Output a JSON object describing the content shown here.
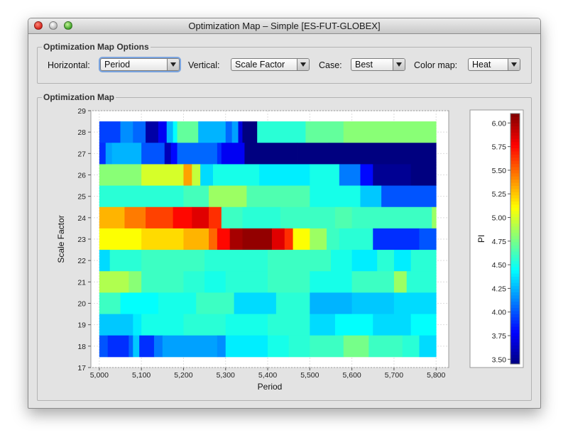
{
  "window": {
    "title": "Optimization Map –  Simple [ES-FUT-GLOBEX]"
  },
  "options": {
    "panel_title": "Optimization Map Options",
    "horizontal_label": "Horizontal:",
    "horizontal_value": "Period",
    "vertical_label": "Vertical:",
    "vertical_value": "Scale Factor",
    "case_label": "Case:",
    "case_value": "Best",
    "colormap_label": "Color map:",
    "colormap_value": "Heat"
  },
  "map_panel": {
    "title": "Optimization Map"
  },
  "chart_data": {
    "type": "heatmap",
    "xlabel": "Period",
    "ylabel": "Scale Factor",
    "x_ticks": [
      "5,000",
      "5,100",
      "5,200",
      "5,300",
      "5,400",
      "5,500",
      "5,600",
      "5,700",
      "5,800"
    ],
    "y_ticks": [
      "17",
      "18",
      "19",
      "20",
      "21",
      "22",
      "23",
      "24",
      "25",
      "26",
      "27",
      "28",
      "29"
    ],
    "xlim": [
      4980,
      5830
    ],
    "ylim": [
      17,
      29
    ],
    "x_range": [
      5000,
      5800
    ],
    "y_range": [
      17.5,
      28.5
    ],
    "grid": true,
    "colorbar": {
      "label": "PI",
      "min": 3.45,
      "max": 6.1,
      "ticks": [
        "6.00",
        "5.75",
        "5.50",
        "5.25",
        "5.00",
        "4.75",
        "4.50",
        "4.25",
        "4.00",
        "3.75",
        "3.50"
      ]
    },
    "rows": [
      {
        "y": 28,
        "segments": [
          [
            5000,
            5050,
            3.95
          ],
          [
            5050,
            5080,
            4.15
          ],
          [
            5080,
            5100,
            4.05
          ],
          [
            5100,
            5110,
            4.05
          ],
          [
            5110,
            5140,
            3.55
          ],
          [
            5140,
            5160,
            3.75
          ],
          [
            5160,
            5175,
            4.25
          ],
          [
            5175,
            5185,
            4.45
          ],
          [
            5185,
            5235,
            4.7
          ],
          [
            5235,
            5300,
            4.25
          ],
          [
            5300,
            5315,
            4.05
          ],
          [
            5315,
            5330,
            4.2
          ],
          [
            5330,
            5340,
            3.7
          ],
          [
            5340,
            5375,
            3.45
          ],
          [
            5375,
            5400,
            4.55
          ],
          [
            5400,
            5490,
            4.55
          ],
          [
            5490,
            5580,
            4.7
          ],
          [
            5580,
            5800,
            4.8
          ]
        ]
      },
      {
        "y": 27,
        "segments": [
          [
            5000,
            5015,
            3.9
          ],
          [
            5015,
            5030,
            4.2
          ],
          [
            5030,
            5100,
            4.25
          ],
          [
            5100,
            5155,
            4.0
          ],
          [
            5155,
            5170,
            3.6
          ],
          [
            5170,
            5185,
            3.8
          ],
          [
            5185,
            5280,
            4.05
          ],
          [
            5280,
            5290,
            3.9
          ],
          [
            5290,
            5345,
            3.75
          ],
          [
            5345,
            5470,
            3.45
          ],
          [
            5470,
            5545,
            3.45
          ],
          [
            5545,
            5800,
            3.42
          ]
        ]
      },
      {
        "y": 26,
        "segments": [
          [
            5000,
            5100,
            4.8
          ],
          [
            5100,
            5200,
            5.0
          ],
          [
            5200,
            5220,
            5.35
          ],
          [
            5220,
            5240,
            4.95
          ],
          [
            5240,
            5270,
            4.35
          ],
          [
            5270,
            5380,
            4.5
          ],
          [
            5380,
            5500,
            4.4
          ],
          [
            5500,
            5570,
            4.5
          ],
          [
            5570,
            5620,
            4.1
          ],
          [
            5620,
            5650,
            3.8
          ],
          [
            5650,
            5740,
            3.5
          ],
          [
            5740,
            5800,
            3.45
          ]
        ]
      },
      {
        "y": 25,
        "segments": [
          [
            5000,
            5200,
            4.55
          ],
          [
            5200,
            5260,
            4.62
          ],
          [
            5260,
            5350,
            4.85
          ],
          [
            5350,
            5500,
            4.65
          ],
          [
            5500,
            5620,
            4.5
          ],
          [
            5620,
            5670,
            4.3
          ],
          [
            5670,
            5800,
            4.0
          ]
        ]
      },
      {
        "y": 24,
        "segments": [
          [
            5000,
            5060,
            5.3
          ],
          [
            5060,
            5110,
            5.45
          ],
          [
            5110,
            5175,
            5.6
          ],
          [
            5175,
            5220,
            5.75
          ],
          [
            5220,
            5260,
            5.85
          ],
          [
            5260,
            5290,
            5.65
          ],
          [
            5290,
            5340,
            4.6
          ],
          [
            5340,
            5430,
            4.55
          ],
          [
            5430,
            5560,
            4.6
          ],
          [
            5560,
            5600,
            4.65
          ],
          [
            5600,
            5790,
            4.6
          ],
          [
            5790,
            5800,
            4.85
          ]
        ]
      },
      {
        "y": 23,
        "segments": [
          [
            5000,
            5100,
            5.1
          ],
          [
            5100,
            5200,
            5.2
          ],
          [
            5200,
            5260,
            5.3
          ],
          [
            5260,
            5280,
            5.5
          ],
          [
            5280,
            5310,
            5.75
          ],
          [
            5310,
            5340,
            6.0
          ],
          [
            5340,
            5410,
            6.05
          ],
          [
            5410,
            5440,
            5.85
          ],
          [
            5440,
            5460,
            5.65
          ],
          [
            5460,
            5500,
            5.1
          ],
          [
            5500,
            5540,
            4.85
          ],
          [
            5540,
            5570,
            4.6
          ],
          [
            5570,
            5650,
            4.55
          ],
          [
            5650,
            5760,
            3.9
          ],
          [
            5760,
            5800,
            4.0
          ]
        ]
      },
      {
        "y": 22,
        "segments": [
          [
            5000,
            5025,
            4.35
          ],
          [
            5025,
            5100,
            4.55
          ],
          [
            5100,
            5250,
            4.6
          ],
          [
            5250,
            5400,
            4.55
          ],
          [
            5400,
            5550,
            4.6
          ],
          [
            5550,
            5600,
            4.5
          ],
          [
            5600,
            5660,
            4.4
          ],
          [
            5660,
            5700,
            4.55
          ],
          [
            5700,
            5740,
            4.4
          ],
          [
            5740,
            5800,
            4.55
          ]
        ]
      },
      {
        "y": 21,
        "segments": [
          [
            5000,
            5070,
            4.9
          ],
          [
            5070,
            5100,
            4.8
          ],
          [
            5100,
            5200,
            4.6
          ],
          [
            5200,
            5250,
            4.55
          ],
          [
            5250,
            5300,
            4.5
          ],
          [
            5300,
            5400,
            4.55
          ],
          [
            5400,
            5500,
            4.6
          ],
          [
            5500,
            5600,
            4.5
          ],
          [
            5600,
            5700,
            4.6
          ],
          [
            5700,
            5730,
            4.85
          ],
          [
            5730,
            5800,
            4.55
          ]
        ]
      },
      {
        "y": 20,
        "segments": [
          [
            5000,
            5050,
            4.6
          ],
          [
            5050,
            5140,
            4.45
          ],
          [
            5140,
            5230,
            4.5
          ],
          [
            5230,
            5320,
            4.6
          ],
          [
            5320,
            5420,
            4.35
          ],
          [
            5420,
            5500,
            4.55
          ],
          [
            5500,
            5600,
            4.25
          ],
          [
            5600,
            5700,
            4.3
          ],
          [
            5700,
            5800,
            4.35
          ]
        ]
      },
      {
        "y": 19,
        "segments": [
          [
            5000,
            5080,
            4.3
          ],
          [
            5080,
            5100,
            4.4
          ],
          [
            5100,
            5200,
            4.5
          ],
          [
            5200,
            5300,
            4.55
          ],
          [
            5300,
            5400,
            4.5
          ],
          [
            5400,
            5500,
            4.55
          ],
          [
            5500,
            5560,
            4.35
          ],
          [
            5560,
            5650,
            4.45
          ],
          [
            5650,
            5740,
            4.35
          ],
          [
            5740,
            5800,
            4.45
          ]
        ]
      },
      {
        "y": 18,
        "segments": [
          [
            5000,
            5020,
            4.0
          ],
          [
            5020,
            5070,
            3.9
          ],
          [
            5070,
            5080,
            4.05
          ],
          [
            5080,
            5095,
            4.3
          ],
          [
            5095,
            5130,
            3.9
          ],
          [
            5130,
            5150,
            4.1
          ],
          [
            5150,
            5280,
            4.2
          ],
          [
            5280,
            5300,
            4.15
          ],
          [
            5300,
            5400,
            4.4
          ],
          [
            5400,
            5450,
            4.5
          ],
          [
            5450,
            5500,
            4.55
          ],
          [
            5500,
            5580,
            4.6
          ],
          [
            5580,
            5640,
            4.75
          ],
          [
            5640,
            5720,
            4.6
          ],
          [
            5720,
            5760,
            4.55
          ],
          [
            5760,
            5800,
            4.35
          ]
        ]
      }
    ]
  }
}
